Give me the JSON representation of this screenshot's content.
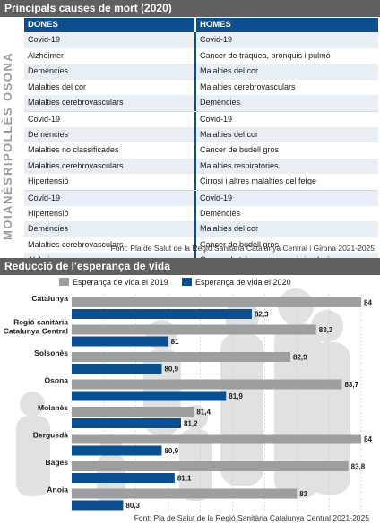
{
  "section1": {
    "title": "Principals causes de mort (2020)",
    "col_women": "DONES",
    "col_men": "HOMES",
    "regions": [
      {
        "name": "OSONA",
        "rows": [
          [
            "Covid-19",
            "Covid-19"
          ],
          [
            "Alzheimer",
            "Cancer de tràquea, bronquis i pulmó"
          ],
          [
            "Demències",
            "Malalties del cor"
          ],
          [
            "Malalties del cor",
            "Malalties cerebrovasculars"
          ],
          [
            "Malalties cerebrovasculars",
            "Demències"
          ]
        ]
      },
      {
        "name": "RIPOLLÈS",
        "rows": [
          [
            "Covid-19",
            "Covid-19"
          ],
          [
            "Demències",
            "Malalties del cor"
          ],
          [
            "Malalties no classificades",
            "Cancer de budell gros"
          ],
          [
            "Malalties cerebrovasculars",
            "Malalties respiratories"
          ],
          [
            "Hipertensió",
            "Cirrosi i altres malalties del fetge"
          ]
        ]
      },
      {
        "name": "MOIANÈS",
        "rows": [
          [
            "Covid-19",
            "Covid-19"
          ],
          [
            "Hipertensió",
            "Demències"
          ],
          [
            "Demències",
            "Malalties del cor"
          ],
          [
            "Malalties cerebrovasculars",
            "Cancer de budell gros"
          ],
          [
            "Alzheimer",
            "Cancer de tràquea, bronquis i pulmó"
          ]
        ]
      }
    ],
    "source": "Font: Pla de Salut de la Regió Sanitària Catalunya Central i Girona 2021-2025"
  },
  "section2": {
    "title": "Reducció de l'esperança de vida",
    "source": "Font: Pla de Salut de la Regió Sanitària Catalunya Central 2021-2025"
  },
  "colors": {
    "header_bg": "#5f6062",
    "blue": "#0c4f91",
    "grey_bar": "#9d9ea0",
    "row_alt": "#e9eef6"
  },
  "chart_data": {
    "type": "bar",
    "orientation": "horizontal",
    "categories": [
      "Catalunya",
      "Regió sanitària Catalunya Central",
      "Solsonès",
      "Osona",
      "Moianès",
      "Berguedà",
      "Bages",
      "Anoia"
    ],
    "series": [
      {
        "name": "Esperança de vida el 2019",
        "values": [
          84,
          83.3,
          82.9,
          83.7,
          81.4,
          84,
          83.8,
          83
        ],
        "labels": [
          "84",
          "83,3",
          "82,9",
          "83,7",
          "81,4",
          "84",
          "83,8",
          "83"
        ],
        "color": "#9d9ea0"
      },
      {
        "name": "Esperança de vida el 2020",
        "values": [
          82.3,
          81,
          80.9,
          81.9,
          81.2,
          80.9,
          81.1,
          80.3
        ],
        "labels": [
          "82,3",
          "81",
          "80,9",
          "81,9",
          "81,2",
          "80,9",
          "81,1",
          "80,3"
        ],
        "color": "#0c4f91"
      }
    ],
    "xlim": [
      79.5,
      84.0
    ],
    "xticks": [
      79.5,
      80.0,
      80.5,
      81.0,
      81.5,
      82.0,
      82.5,
      83.0,
      83.5,
      84.0
    ],
    "xtick_labels": [
      "79,5",
      "80,0",
      "80,5",
      "81,0",
      "81,5",
      "82,0",
      "82,5",
      "83,0",
      "83,5",
      "84,0"
    ],
    "grid": true,
    "legend": "top"
  }
}
